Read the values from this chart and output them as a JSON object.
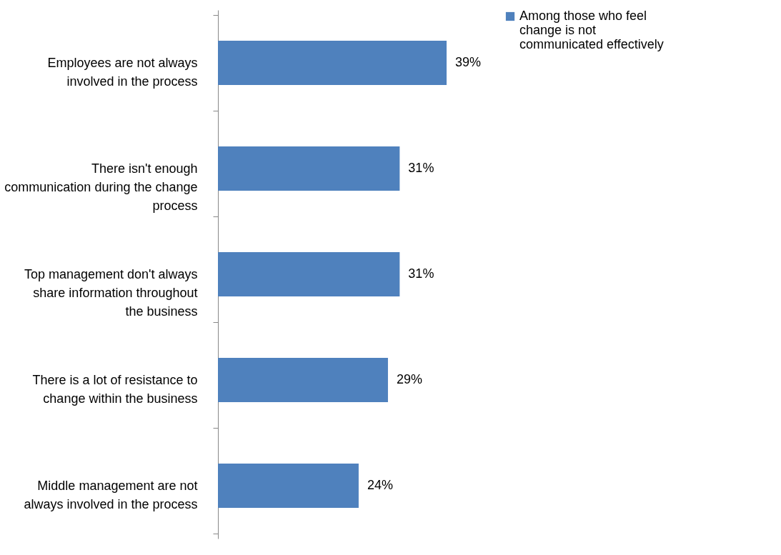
{
  "chart_data": {
    "type": "bar",
    "orientation": "horizontal",
    "legend": "right",
    "grid": false,
    "categories": [
      "Employees are not always involved in the process",
      "There isn't enough communication during the change process",
      "Top management don't always share information throughout the business",
      "There is a lot of resistance to change within the business",
      "Middle management are not always involved in the process"
    ],
    "series": [
      {
        "name": "Among those who feel change is not communicated effectively",
        "color": "#4f81bd",
        "values": [
          39,
          31,
          31,
          29,
          24
        ],
        "value_labels": [
          "39%",
          "31%",
          "31%",
          "29%",
          "24%"
        ]
      }
    ]
  }
}
